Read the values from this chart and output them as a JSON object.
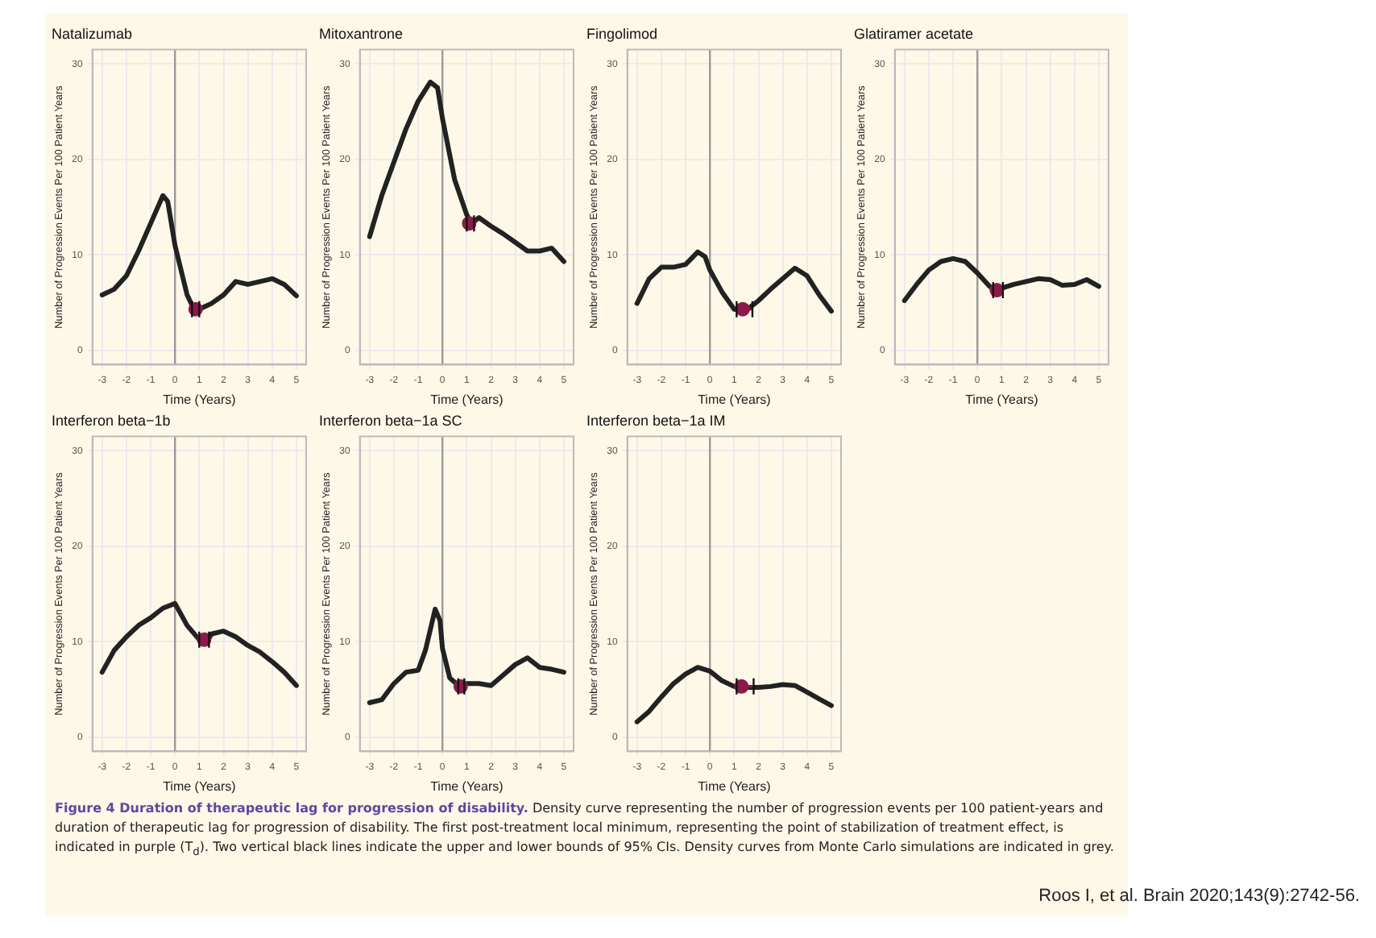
{
  "chart_data": [
    {
      "type": "line",
      "title": "Natalizumab",
      "xlabel": "Time (Years)",
      "ylabel": "Number of Progression Events Per 100 Patient Years",
      "xlim": [
        -3.4,
        5.4
      ],
      "ylim": [
        -1.5,
        31.5
      ],
      "xticks": [
        -3,
        -2,
        -1,
        0,
        1,
        2,
        3,
        4,
        5
      ],
      "yticks": [
        0,
        10,
        20,
        30
      ],
      "grid": true,
      "ref_lines": [
        {
          "axis": "x",
          "value": 0,
          "color": "#9a9a9a"
        }
      ],
      "series": [
        {
          "color": "#222222",
          "marker": "none",
          "x": [
            -3,
            -2.5,
            -2,
            -1.5,
            -1,
            -0.5,
            -0.3,
            0,
            0.5,
            0.8,
            1,
            1.5,
            2,
            2.5,
            3,
            3.5,
            4,
            4.5,
            5
          ],
          "values": [
            5.8,
            6.4,
            7.8,
            10.4,
            13.3,
            16.2,
            15.6,
            11,
            5.8,
            4.2,
            4.3,
            4.9,
            5.8,
            7.2,
            6.9,
            7.2,
            7.5,
            6.9,
            5.7
          ]
        },
        {
          "type": "scatter",
          "color": "#8b1a4a",
          "marker": "circle",
          "x": [
            0.85
          ],
          "values": [
            4.3
          ],
          "xerrors": [
            [
              0.7,
              1.0
            ]
          ]
        }
      ]
    },
    {
      "type": "line",
      "title": "Mitoxantrone",
      "xlabel": "Time (Years)",
      "ylabel": "Number of Progression Events Per 100 Patient Years",
      "xlim": [
        -3.4,
        5.4
      ],
      "ylim": [
        -1.5,
        31.5
      ],
      "xticks": [
        -3,
        -2,
        -1,
        0,
        1,
        2,
        3,
        4,
        5
      ],
      "yticks": [
        0,
        10,
        20,
        30
      ],
      "grid": true,
      "ref_lines": [
        {
          "axis": "x",
          "value": 0,
          "color": "#9a9a9a"
        }
      ],
      "series": [
        {
          "color": "#222222",
          "marker": "none",
          "x": [
            -3,
            -2.5,
            -2,
            -1.5,
            -1,
            -0.5,
            -0.2,
            0,
            0.5,
            1,
            1.2,
            1.5,
            2,
            2.5,
            3,
            3.5,
            4,
            4.5,
            5
          ],
          "values": [
            11.9,
            16.2,
            19.7,
            23.2,
            26.1,
            28.1,
            27.5,
            24.3,
            17.9,
            14.2,
            13.3,
            13.9,
            13,
            12.2,
            11.3,
            10.4,
            10.4,
            10.7,
            9.3
          ]
        },
        {
          "type": "scatter",
          "color": "#8b1a4a",
          "marker": "circle",
          "x": [
            1.1
          ],
          "values": [
            13.3
          ],
          "xerrors": [
            [
              1.0,
              1.3
            ]
          ]
        }
      ]
    },
    {
      "type": "line",
      "title": "Fingolimod",
      "xlabel": "Time (Years)",
      "ylabel": "Number of Progression Events Per 100 Patient Years",
      "xlim": [
        -3.4,
        5.4
      ],
      "ylim": [
        -1.5,
        31.5
      ],
      "xticks": [
        -3,
        -2,
        -1,
        0,
        1,
        2,
        3,
        4,
        5
      ],
      "yticks": [
        0,
        10,
        20,
        30
      ],
      "grid": true,
      "ref_lines": [
        {
          "axis": "x",
          "value": 0,
          "color": "#9a9a9a"
        }
      ],
      "series": [
        {
          "color": "#222222",
          "marker": "none",
          "x": [
            -3,
            -2.5,
            -2,
            -1.5,
            -1,
            -0.5,
            -0.2,
            0,
            0.5,
            1,
            1.5,
            2,
            2.5,
            3,
            3.5,
            4,
            4.5,
            5
          ],
          "values": [
            4.9,
            7.5,
            8.7,
            8.7,
            9,
            10.3,
            9.8,
            8.4,
            6.1,
            4.3,
            4.2,
            5.2,
            6.4,
            7.5,
            8.6,
            7.8,
            5.8,
            4.1
          ]
        },
        {
          "type": "scatter",
          "color": "#8b1a4a",
          "marker": "circle",
          "x": [
            1.35
          ],
          "values": [
            4.3
          ],
          "xerrors": [
            [
              1.1,
              1.75
            ]
          ]
        }
      ]
    },
    {
      "type": "line",
      "title": "Glatiramer acetate",
      "xlabel": "Time (Years)",
      "ylabel": "Number of Progression Events Per 100 Patient Years",
      "xlim": [
        -3.4,
        5.4
      ],
      "ylim": [
        -1.5,
        31.5
      ],
      "xticks": [
        -3,
        -2,
        -1,
        0,
        1,
        2,
        3,
        4,
        5
      ],
      "yticks": [
        0,
        10,
        20,
        30
      ],
      "grid": true,
      "ref_lines": [
        {
          "axis": "x",
          "value": 0,
          "color": "#9a9a9a"
        }
      ],
      "series": [
        {
          "color": "#222222",
          "marker": "none",
          "x": [
            -3,
            -2.5,
            -2,
            -1.5,
            -1,
            -0.5,
            0,
            0.5,
            0.8,
            1,
            1.5,
            2,
            2.5,
            3,
            3.5,
            4,
            4.5,
            5
          ],
          "values": [
            5.2,
            6.9,
            8.4,
            9.3,
            9.6,
            9.3,
            8.1,
            6.7,
            6.3,
            6.5,
            6.9,
            7.2,
            7.5,
            7.4,
            6.8,
            6.9,
            7.4,
            6.7
          ]
        },
        {
          "type": "scatter",
          "color": "#8b1a4a",
          "marker": "circle",
          "x": [
            0.8
          ],
          "values": [
            6.3
          ],
          "xerrors": [
            [
              0.65,
              1.05
            ]
          ]
        }
      ]
    },
    {
      "type": "line",
      "title": "Interferon beta−1b",
      "xlabel": "Time (Years)",
      "ylabel": "Number of Progression Events Per 100 Patient Years",
      "xlim": [
        -3.4,
        5.4
      ],
      "ylim": [
        -1.5,
        31.5
      ],
      "xticks": [
        -3,
        -2,
        -1,
        0,
        1,
        2,
        3,
        4,
        5
      ],
      "yticks": [
        0,
        10,
        20,
        30
      ],
      "grid": true,
      "ref_lines": [
        {
          "axis": "x",
          "value": 0,
          "color": "#9a9a9a"
        }
      ],
      "series": [
        {
          "color": "#222222",
          "marker": "none",
          "x": [
            -3,
            -2.5,
            -2,
            -1.5,
            -1,
            -0.5,
            0,
            0.5,
            1,
            1.3,
            1.5,
            2,
            2.5,
            3,
            3.5,
            4,
            4.5,
            5
          ],
          "values": [
            6.8,
            9.1,
            10.5,
            11.7,
            12.5,
            13.5,
            14,
            11.7,
            10.2,
            9.9,
            10.8,
            11.1,
            10.5,
            9.6,
            8.9,
            7.9,
            6.8,
            5.4
          ]
        },
        {
          "type": "scatter",
          "color": "#8b1a4a",
          "marker": "circle",
          "x": [
            1.2
          ],
          "values": [
            10.2
          ],
          "xerrors": [
            [
              1.0,
              1.4
            ]
          ]
        }
      ]
    },
    {
      "type": "line",
      "title": "Interferon beta−1a SC",
      "xlabel": "Time (Years)",
      "ylabel": "Number of Progression Events Per 100 Patient Years",
      "xlim": [
        -3.4,
        5.4
      ],
      "ylim": [
        -1.5,
        31.5
      ],
      "xticks": [
        -3,
        -2,
        -1,
        0,
        1,
        2,
        3,
        4,
        5
      ],
      "yticks": [
        0,
        10,
        20,
        30
      ],
      "grid": true,
      "ref_lines": [
        {
          "axis": "x",
          "value": 0,
          "color": "#9a9a9a"
        }
      ],
      "series": [
        {
          "color": "#222222",
          "marker": "none",
          "x": [
            -3,
            -2.5,
            -2,
            -1.5,
            -1,
            -0.7,
            -0.3,
            -0.1,
            0,
            0.3,
            0.7,
            1,
            1.5,
            2,
            2.5,
            3,
            3.5,
            4,
            4.5,
            5
          ],
          "values": [
            3.6,
            3.9,
            5.6,
            6.8,
            7,
            9.1,
            13.4,
            12.2,
            9.3,
            6.2,
            5.3,
            5.6,
            5.6,
            5.4,
            6.5,
            7.6,
            8.3,
            7.3,
            7.1,
            6.8
          ]
        },
        {
          "type": "scatter",
          "color": "#8b1a4a",
          "marker": "circle",
          "x": [
            0.75
          ],
          "values": [
            5.3
          ],
          "xerrors": [
            [
              0.65,
              0.9
            ]
          ]
        }
      ]
    },
    {
      "type": "line",
      "title": "Interferon beta−1a IM",
      "xlabel": "Time (Years)",
      "ylabel": "Number of Progression Events Per 100 Patient Years",
      "xlim": [
        -3.4,
        5.4
      ],
      "ylim": [
        -1.5,
        31.5
      ],
      "xticks": [
        -3,
        -2,
        -1,
        0,
        1,
        2,
        3,
        4,
        5
      ],
      "yticks": [
        0,
        10,
        20,
        30
      ],
      "grid": true,
      "ref_lines": [
        {
          "axis": "x",
          "value": 0,
          "color": "#9a9a9a"
        }
      ],
      "annotations": [
        "Figure 4 Duration of therapeutic lag for progression of disability.",
        "Density curve representing the number of progression events per 100 patient-years and duration of therapeutic lag for progression of disability. The first post-treatment local minimum, representing the point of stabilization of treatment effect, is indicated in purple (T$_{d}$). Two vertical black lines indicate the upper and lower bounds of 95% CIs. Density curves from Monte Carlo simulations are indicated in grey.",
        "Roos I, et al. Brain 2020;143(9):2742-56."
      ],
      "series": [
        {
          "color": "#222222",
          "marker": "none",
          "x": [
            -3,
            -2.5,
            -2,
            -1.5,
            -1,
            -0.5,
            0,
            0.5,
            1,
            1.5,
            2,
            2.5,
            3,
            3.5,
            4,
            4.5,
            5
          ],
          "values": [
            1.6,
            2.7,
            4.2,
            5.6,
            6.6,
            7.3,
            6.9,
            5.9,
            5.3,
            5.2,
            5.2,
            5.3,
            5.5,
            5.4,
            4.7,
            4,
            3.3
          ]
        },
        {
          "type": "scatter",
          "color": "#8b1a4a",
          "marker": "circle",
          "x": [
            1.3
          ],
          "values": [
            5.3
          ],
          "xerrors": [
            [
              1.1,
              1.8
            ]
          ]
        }
      ]
    }
  ]
}
